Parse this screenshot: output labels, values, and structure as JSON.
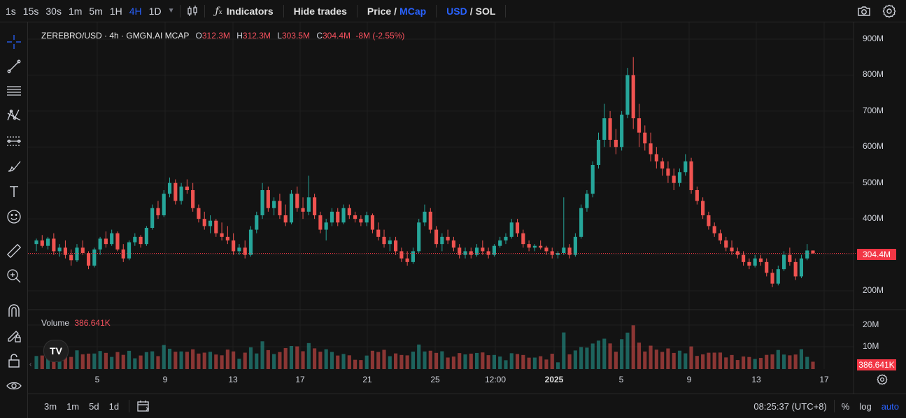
{
  "toolbar": {
    "timeframes": [
      {
        "label": "1s",
        "active": false
      },
      {
        "label": "15s",
        "active": false
      },
      {
        "label": "30s",
        "active": false
      },
      {
        "label": "1m",
        "active": false
      },
      {
        "label": "5m",
        "active": false
      },
      {
        "label": "1H",
        "active": false
      },
      {
        "label": "4H",
        "active": true
      },
      {
        "label": "1D",
        "active": false
      }
    ],
    "indicators_label": "Indicators",
    "hide_trades_label": "Hide trades",
    "price_label": "Price",
    "slash": "/",
    "mcap_label": "MCap",
    "usd_label": "USD",
    "sol_label": "SOL"
  },
  "legend": {
    "symbol": "ZEREBRO/USD · 4h · GMGN.AI MCAP",
    "o_key": "O",
    "o_val": "312.3M",
    "h_key": "H",
    "h_val": "312.3M",
    "l_key": "L",
    "l_val": "303.5M",
    "c_key": "C",
    "c_val": "304.4M",
    "change": "-8M (-2.55%)"
  },
  "volume_legend": {
    "label": "Volume",
    "value": "386.641K"
  },
  "price_axis": {
    "ticks": [
      "900M",
      "800M",
      "700M",
      "600M",
      "500M",
      "400M",
      "300M",
      "200M"
    ]
  },
  "volume_axis": {
    "ticks": [
      "20M",
      "10M"
    ]
  },
  "current_price_tag": "304.4M",
  "current_volume_tag": "386.641K",
  "time_axis": {
    "labels": [
      "5",
      "9",
      "13",
      "17",
      "21",
      "25",
      "12:00",
      "2025",
      "5",
      "9",
      "13",
      "17"
    ]
  },
  "bottom": {
    "ranges": [
      "3m",
      "1m",
      "5d",
      "1d"
    ],
    "clock": "08:25:37 (UTC+8)",
    "percent_label": "%",
    "log_label": "log",
    "auto_label": "auto"
  },
  "colors": {
    "up": "#26a69a",
    "down": "#ef5350",
    "accent": "#2962ff",
    "background": "#131313"
  },
  "chart_data": {
    "type": "candlestick",
    "ylim": [
      200,
      900
    ],
    "volume_ylim": [
      0,
      20
    ],
    "candles": [
      [
        330,
        345,
        310,
        340
      ],
      [
        340,
        355,
        320,
        325
      ],
      [
        325,
        350,
        315,
        345
      ],
      [
        345,
        360,
        300,
        310
      ],
      [
        310,
        330,
        295,
        320
      ],
      [
        320,
        340,
        290,
        300
      ],
      [
        300,
        315,
        270,
        285
      ],
      [
        285,
        330,
        280,
        320
      ],
      [
        320,
        340,
        300,
        305
      ],
      [
        305,
        310,
        260,
        270
      ],
      [
        270,
        320,
        265,
        315
      ],
      [
        315,
        350,
        300,
        345
      ],
      [
        345,
        365,
        320,
        330
      ],
      [
        330,
        370,
        325,
        360
      ],
      [
        360,
        365,
        310,
        315
      ],
      [
        315,
        330,
        280,
        290
      ],
      [
        290,
        340,
        285,
        335
      ],
      [
        335,
        360,
        325,
        350
      ],
      [
        350,
        355,
        320,
        330
      ],
      [
        330,
        380,
        325,
        375
      ],
      [
        375,
        440,
        370,
        430
      ],
      [
        430,
        450,
        400,
        410
      ],
      [
        410,
        480,
        405,
        470
      ],
      [
        470,
        515,
        460,
        500
      ],
      [
        500,
        510,
        440,
        450
      ],
      [
        450,
        500,
        440,
        490
      ],
      [
        490,
        510,
        470,
        480
      ],
      [
        480,
        500,
        420,
        430
      ],
      [
        430,
        440,
        390,
        400
      ],
      [
        400,
        420,
        370,
        380
      ],
      [
        380,
        410,
        360,
        395
      ],
      [
        395,
        400,
        350,
        360
      ],
      [
        360,
        390,
        340,
        350
      ],
      [
        350,
        380,
        330,
        340
      ],
      [
        340,
        360,
        300,
        310
      ],
      [
        310,
        330,
        300,
        320
      ],
      [
        320,
        340,
        290,
        300
      ],
      [
        300,
        380,
        295,
        370
      ],
      [
        370,
        420,
        360,
        410
      ],
      [
        410,
        500,
        400,
        480
      ],
      [
        480,
        490,
        420,
        430
      ],
      [
        430,
        460,
        410,
        450
      ],
      [
        450,
        470,
        400,
        410
      ],
      [
        410,
        440,
        380,
        390
      ],
      [
        390,
        480,
        385,
        470
      ],
      [
        470,
        490,
        420,
        430
      ],
      [
        430,
        460,
        400,
        420
      ],
      [
        420,
        520,
        410,
        460
      ],
      [
        460,
        470,
        400,
        410
      ],
      [
        410,
        420,
        360,
        370
      ],
      [
        370,
        400,
        340,
        390
      ],
      [
        390,
        430,
        380,
        420
      ],
      [
        420,
        430,
        380,
        390
      ],
      [
        390,
        440,
        385,
        430
      ],
      [
        430,
        440,
        400,
        410
      ],
      [
        410,
        420,
        390,
        400
      ],
      [
        400,
        410,
        380,
        390
      ],
      [
        390,
        420,
        380,
        410
      ],
      [
        410,
        415,
        360,
        370
      ],
      [
        370,
        390,
        340,
        350
      ],
      [
        350,
        370,
        320,
        330
      ],
      [
        330,
        350,
        310,
        340
      ],
      [
        340,
        350,
        300,
        310
      ],
      [
        310,
        320,
        280,
        290
      ],
      [
        290,
        310,
        270,
        280
      ],
      [
        280,
        320,
        275,
        310
      ],
      [
        310,
        400,
        305,
        390
      ],
      [
        390,
        440,
        380,
        420
      ],
      [
        420,
        430,
        360,
        370
      ],
      [
        370,
        380,
        320,
        330
      ],
      [
        330,
        360,
        310,
        350
      ],
      [
        350,
        370,
        330,
        340
      ],
      [
        340,
        350,
        310,
        320
      ],
      [
        320,
        330,
        290,
        300
      ],
      [
        300,
        320,
        290,
        310
      ],
      [
        310,
        320,
        290,
        300
      ],
      [
        300,
        330,
        295,
        320
      ],
      [
        320,
        340,
        300,
        310
      ],
      [
        310,
        320,
        290,
        300
      ],
      [
        300,
        330,
        295,
        325
      ],
      [
        325,
        350,
        320,
        340
      ],
      [
        340,
        360,
        330,
        350
      ],
      [
        350,
        400,
        345,
        390
      ],
      [
        390,
        400,
        350,
        360
      ],
      [
        360,
        370,
        320,
        330
      ],
      [
        330,
        340,
        310,
        320
      ],
      [
        320,
        330,
        310,
        325
      ],
      [
        325,
        340,
        315,
        320
      ],
      [
        320,
        325,
        300,
        310
      ],
      [
        310,
        320,
        290,
        300
      ],
      [
        300,
        310,
        290,
        305
      ],
      [
        305,
        460,
        300,
        320
      ],
      [
        320,
        330,
        290,
        300
      ],
      [
        300,
        360,
        295,
        350
      ],
      [
        350,
        440,
        345,
        430
      ],
      [
        430,
        480,
        420,
        470
      ],
      [
        470,
        560,
        460,
        550
      ],
      [
        550,
        640,
        540,
        620
      ],
      [
        620,
        720,
        600,
        680
      ],
      [
        680,
        700,
        600,
        620
      ],
      [
        620,
        650,
        580,
        600
      ],
      [
        600,
        700,
        590,
        690
      ],
      [
        690,
        820,
        680,
        800
      ],
      [
        800,
        850,
        650,
        680
      ],
      [
        680,
        720,
        600,
        640
      ],
      [
        640,
        660,
        590,
        610
      ],
      [
        610,
        640,
        560,
        580
      ],
      [
        580,
        600,
        540,
        560
      ],
      [
        560,
        570,
        520,
        540
      ],
      [
        540,
        560,
        500,
        520
      ],
      [
        520,
        540,
        480,
        500
      ],
      [
        500,
        540,
        490,
        530
      ],
      [
        530,
        580,
        520,
        560
      ],
      [
        560,
        570,
        470,
        480
      ],
      [
        480,
        490,
        440,
        450
      ],
      [
        450,
        460,
        400,
        410
      ],
      [
        410,
        420,
        370,
        380
      ],
      [
        380,
        390,
        350,
        360
      ],
      [
        360,
        370,
        330,
        340
      ],
      [
        340,
        350,
        310,
        320
      ],
      [
        320,
        340,
        300,
        310
      ],
      [
        310,
        320,
        290,
        300
      ],
      [
        300,
        310,
        270,
        280
      ],
      [
        280,
        290,
        260,
        270
      ],
      [
        270,
        300,
        265,
        290
      ],
      [
        290,
        300,
        270,
        280
      ],
      [
        280,
        290,
        240,
        250
      ],
      [
        250,
        260,
        210,
        220
      ],
      [
        220,
        270,
        215,
        260
      ],
      [
        260,
        310,
        255,
        300
      ],
      [
        300,
        320,
        270,
        280
      ],
      [
        280,
        290,
        230,
        240
      ],
      [
        240,
        300,
        235,
        290
      ],
      [
        290,
        330,
        285,
        312
      ],
      [
        312,
        312,
        303,
        304
      ]
    ]
  }
}
